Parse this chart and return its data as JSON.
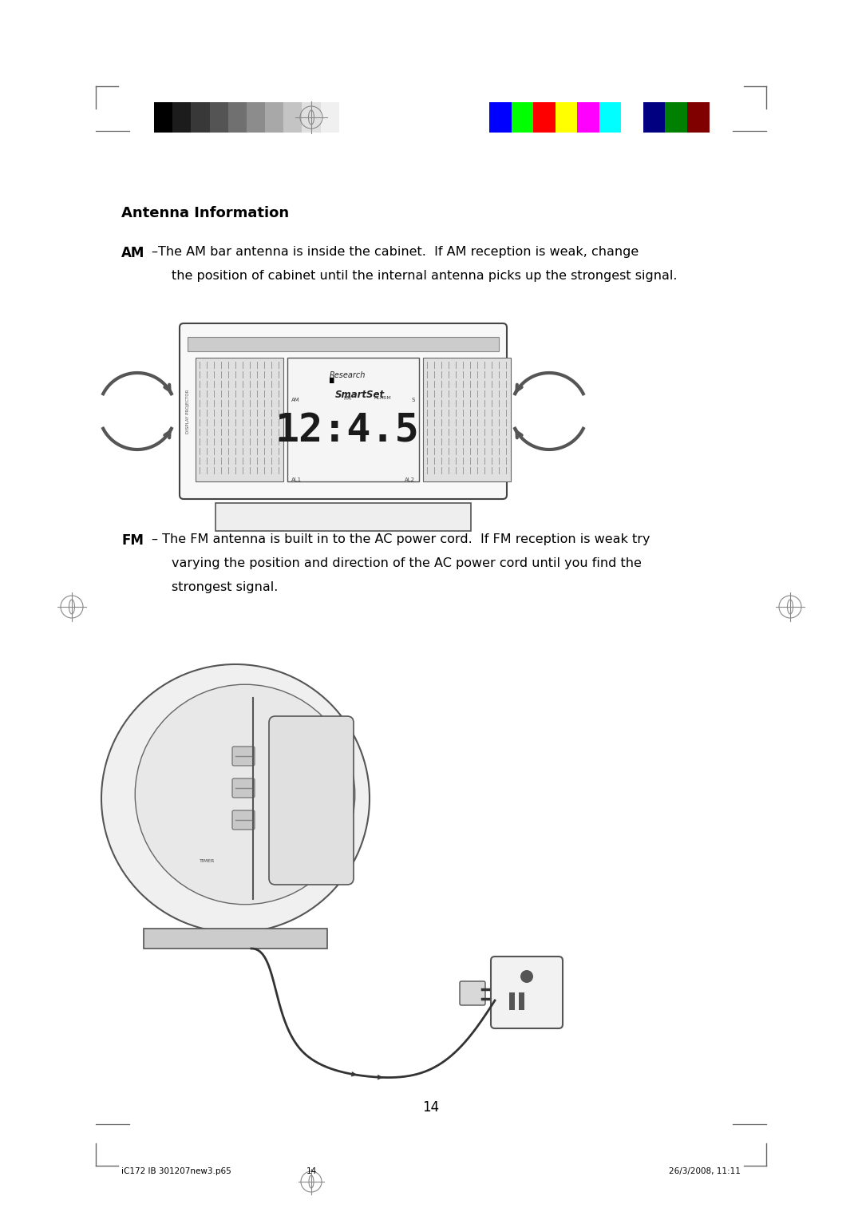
{
  "bg_color": "#ffffff",
  "page_width": 10.8,
  "page_height": 15.28,
  "grayscale_colors": [
    "#000000",
    "#1c1c1c",
    "#383838",
    "#545454",
    "#707070",
    "#8c8c8c",
    "#a8a8a8",
    "#c4c4c4",
    "#e0e0e0",
    "#f0f0f0",
    "#ffffff"
  ],
  "color_bars": [
    "#0000ff",
    "#00ff00",
    "#ff0000",
    "#ffff00",
    "#ff00ff",
    "#00ffff",
    "#ffffff",
    "#000080",
    "#008000",
    "#800000"
  ],
  "title": "Antenna Information",
  "am_bold": "AM",
  "am_line1": "–The AM bar antenna is inside the cabinet.  If AM reception is weak, change",
  "am_line2": "the position of cabinet until the internal antenna picks up the strongest signal.",
  "fm_bold": "FM",
  "fm_line1": "– The FM antenna is built in to the AC power cord.  If FM reception is weak try",
  "fm_line2": "varying the position and direction of the AC power cord until you find the",
  "fm_line3": "strongest signal.",
  "page_number": "14",
  "footer_left": "iC172 IB 301207new3.p65",
  "footer_center": "14",
  "footer_right": "26/3/2008, 11:11"
}
